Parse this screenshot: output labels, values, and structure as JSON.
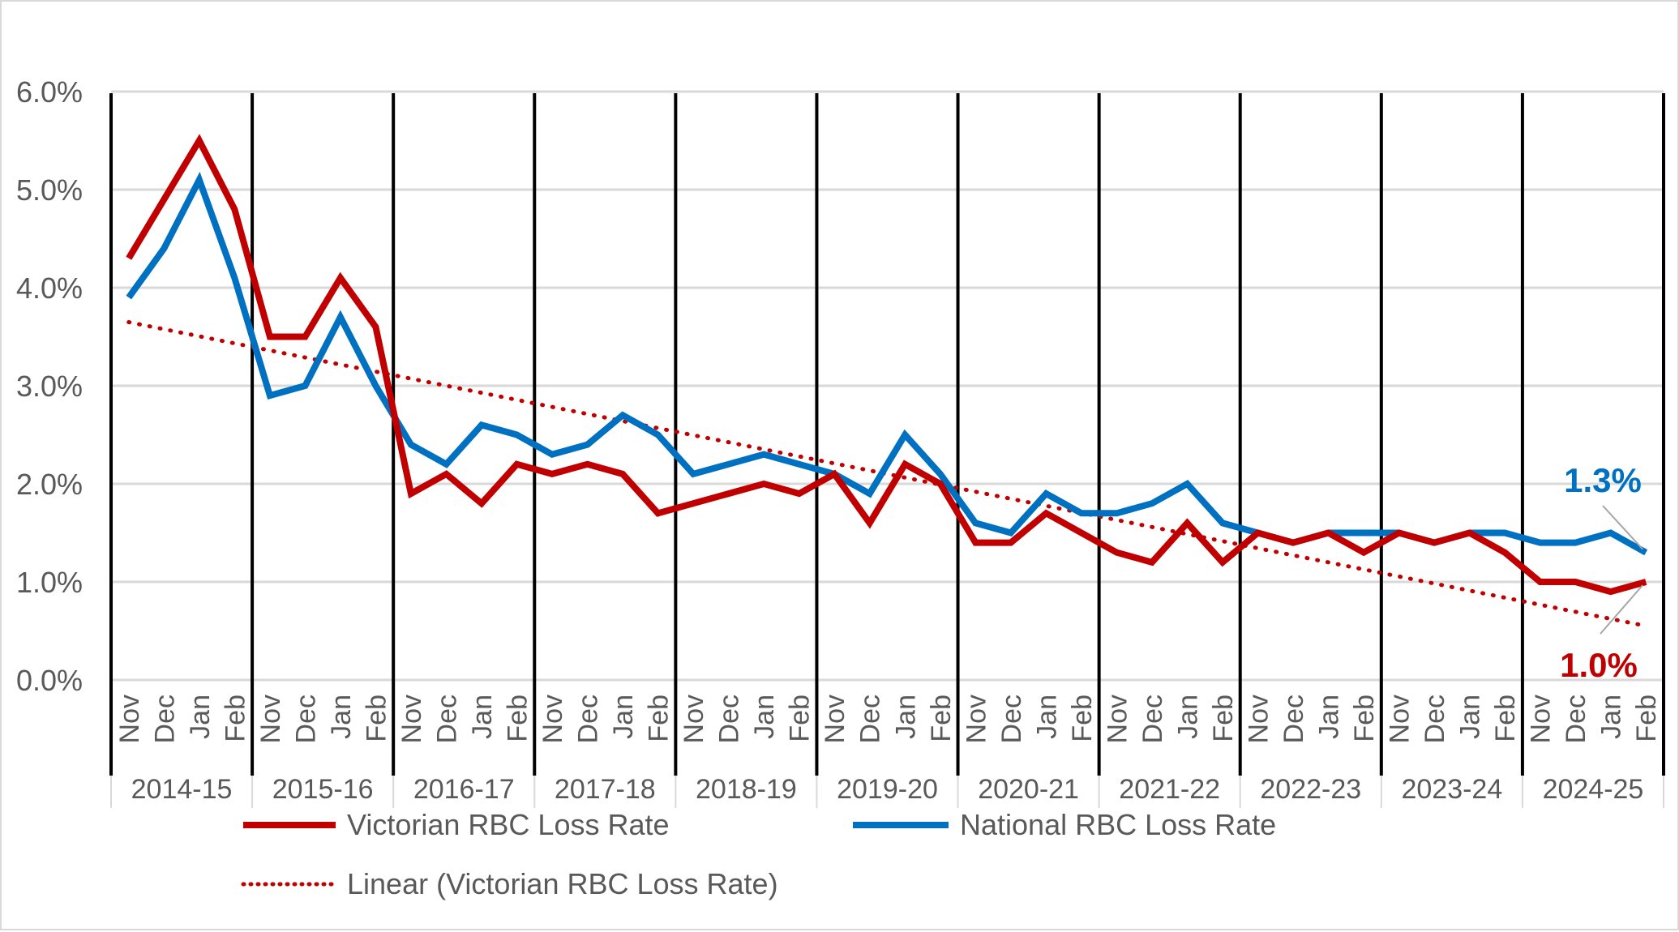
{
  "chart_data": {
    "type": "line",
    "title": "",
    "xlabel": "",
    "ylabel": "",
    "ylim": [
      0,
      6
    ],
    "y_ticks": [
      "0.0%",
      "1.0%",
      "2.0%",
      "3.0%",
      "4.0%",
      "5.0%",
      "6.0%"
    ],
    "grid": "horizontal",
    "legend_position": "bottom",
    "groups": [
      "2014-15",
      "2015-16",
      "2016-17",
      "2017-18",
      "2018-19",
      "2019-20",
      "2020-21",
      "2021-22",
      "2022-23",
      "2023-24",
      "2024-25"
    ],
    "months": [
      "Nov",
      "Dec",
      "Jan",
      "Feb"
    ],
    "series": [
      {
        "name": "Victorian RBC Loss Rate",
        "color": "#c00000",
        "values": [
          4.3,
          4.9,
          5.5,
          4.8,
          3.5,
          3.5,
          4.1,
          3.6,
          1.9,
          2.1,
          1.8,
          2.2,
          2.1,
          2.2,
          2.1,
          1.7,
          1.8,
          1.9,
          2.0,
          1.9,
          2.1,
          1.6,
          2.2,
          2.0,
          1.4,
          1.4,
          1.7,
          1.5,
          1.3,
          1.2,
          1.6,
          1.2,
          1.5,
          1.4,
          1.5,
          1.3,
          1.5,
          1.4,
          1.5,
          1.3,
          1.0,
          1.0,
          0.9,
          1.0
        ]
      },
      {
        "name": "National RBC Loss Rate",
        "color": "#0070c0",
        "values": [
          3.9,
          4.4,
          5.1,
          4.1,
          2.9,
          3.0,
          3.7,
          3.0,
          2.4,
          2.2,
          2.6,
          2.5,
          2.3,
          2.4,
          2.7,
          2.5,
          2.1,
          2.2,
          2.3,
          2.2,
          2.1,
          1.9,
          2.5,
          2.1,
          1.6,
          1.5,
          1.9,
          1.7,
          1.7,
          1.8,
          2.0,
          1.6,
          1.5,
          1.4,
          1.5,
          1.5,
          1.5,
          1.4,
          1.5,
          1.5,
          1.4,
          1.4,
          1.5,
          1.3
        ]
      }
    ],
    "trendline": {
      "name": "Linear (Victorian RBC Loss Rate)",
      "color": "#c00000",
      "of_series": "Victorian RBC Loss Rate",
      "type": "linear"
    },
    "annotations": [
      {
        "text": "1.3%",
        "series": "National RBC Loss Rate",
        "color": "#0070c0"
      },
      {
        "text": "1.0%",
        "series": "Victorian RBC Loss Rate",
        "color": "#c00000"
      }
    ]
  }
}
